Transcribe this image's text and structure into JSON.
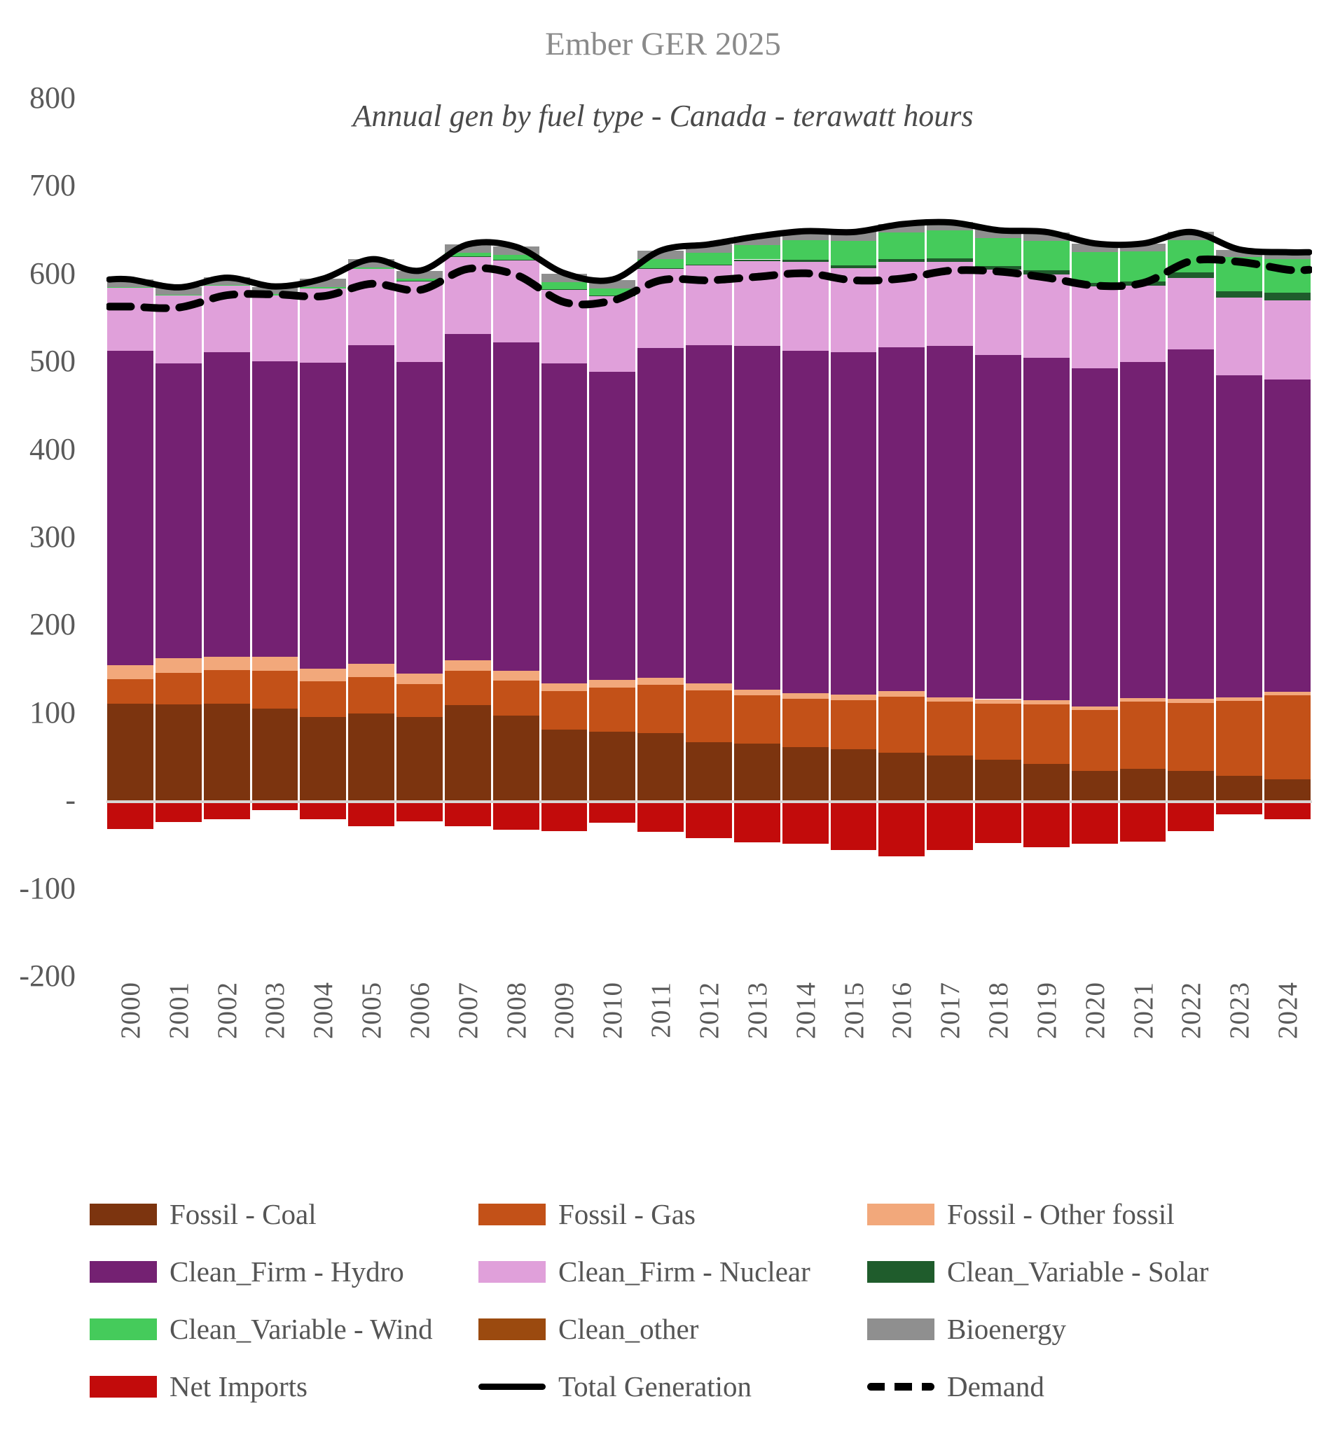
{
  "header": {
    "title": "Ember GER 2025",
    "subtitle": "Annual gen by fuel type - Canada - terawatt hours"
  },
  "y_axis": {
    "ticks": [
      {
        "label": "800",
        "value": 800
      },
      {
        "label": "700",
        "value": 700
      },
      {
        "label": "600",
        "value": 600
      },
      {
        "label": "500",
        "value": 500
      },
      {
        "label": "400",
        "value": 400
      },
      {
        "label": "300",
        "value": 300
      },
      {
        "label": "200",
        "value": 200
      },
      {
        "label": "100",
        "value": 100
      },
      {
        "label": "-",
        "value": 0
      },
      {
        "label": "-100",
        "value": -100
      },
      {
        "label": "-200",
        "value": -200
      }
    ]
  },
  "colors": {
    "coal": "#7C340F",
    "gas": "#C35118",
    "other_fossil": "#F2A87B",
    "hydro": "#742172",
    "nuclear": "#E0A0DA",
    "solar": "#1F5C2C",
    "wind": "#45CB5B",
    "clean_other": "#9B4A0F",
    "bioenergy": "#8F8F8F",
    "net_imports": "#C20B0B",
    "line": "#000000",
    "zero_axis": "#D8D5D3",
    "axis_text": "#5A5A5A",
    "title_text": "#8A8A8A",
    "subtitle_text": "#4A4A4A"
  },
  "chart_data": {
    "type": "bar",
    "subtype": "stacked-bar-with-lines",
    "title": "Ember GER 2025",
    "subtitle": "Annual gen by fuel type - Canada - terawatt hours",
    "region": "Canada",
    "unit": "terawatt hours",
    "ylim": [
      -200,
      800
    ],
    "grid": false,
    "legend_position": "bottom",
    "categories": [
      "2000",
      "2001",
      "2002",
      "2003",
      "2004",
      "2005",
      "2006",
      "2007",
      "2008",
      "2009",
      "2010",
      "2011",
      "2012",
      "2013",
      "2014",
      "2015",
      "2016",
      "2017",
      "2018",
      "2019",
      "2020",
      "2021",
      "2022",
      "2023",
      "2024"
    ],
    "series": [
      {
        "name": "Fossil - Coal",
        "color": "#7C340F",
        "values": [
          112,
          111,
          112,
          106,
          97,
          101,
          97,
          110,
          98,
          82,
          80,
          78,
          68,
          66,
          62,
          60,
          56,
          53,
          48,
          43,
          35,
          38,
          35,
          30,
          26
        ]
      },
      {
        "name": "Fossil - Gas",
        "color": "#C35118",
        "values": [
          28,
          36,
          38,
          43,
          40,
          41,
          37,
          39,
          40,
          44,
          50,
          55,
          59,
          55,
          55,
          56,
          64,
          61,
          64,
          68,
          70,
          76,
          78,
          85,
          95
        ]
      },
      {
        "name": "Fossil - Other fossil",
        "color": "#F2A87B",
        "values": [
          16,
          17,
          15,
          16,
          15,
          15,
          12,
          12,
          11,
          9,
          9,
          8,
          8,
          7,
          7,
          6,
          6,
          5,
          5,
          5,
          4,
          4,
          4,
          4,
          4
        ]
      },
      {
        "name": "Clean_Firm - Hydro",
        "color": "#742172",
        "values": [
          358,
          335,
          347,
          337,
          348,
          363,
          355,
          372,
          374,
          364,
          351,
          376,
          385,
          391,
          390,
          390,
          392,
          400,
          392,
          390,
          385,
          383,
          398,
          367,
          356
        ]
      },
      {
        "name": "Clean_Firm - Nuclear",
        "color": "#E0A0DA",
        "values": [
          72,
          78,
          76,
          75,
          85,
          87,
          92,
          88,
          94,
          85,
          86,
          90,
          91,
          97,
          101,
          96,
          97,
          96,
          97,
          95,
          93,
          87,
          82,
          88,
          90
        ]
      },
      {
        "name": "Clean_Variable - Solar",
        "color": "#1F5C2C",
        "values": [
          0,
          0,
          0,
          0,
          0,
          0,
          0.1,
          0.1,
          0.1,
          0.2,
          0.4,
          0.8,
          1.2,
          1.8,
          2.5,
          3,
          3.3,
          3.7,
          3.9,
          4.1,
          4.3,
          5,
          6,
          7.5,
          9
        ]
      },
      {
        "name": "Clean_Variable - Wind",
        "color": "#45CB5B",
        "values": [
          0.3,
          0.5,
          0.7,
          1,
          1.5,
          1.8,
          2.9,
          4,
          5.7,
          8,
          8.7,
          10.2,
          13,
          16,
          22,
          28,
          30,
          32,
          32,
          34,
          35,
          34,
          37,
          39,
          38
        ]
      },
      {
        "name": "Clean_other",
        "color": "#9B4A0F",
        "values": [
          0,
          0,
          0,
          0,
          0,
          0,
          0,
          0,
          0,
          0,
          0,
          0,
          0,
          0,
          0,
          0,
          0,
          0,
          0,
          0,
          0,
          0,
          0,
          0,
          0
        ]
      },
      {
        "name": "Bioenergy",
        "color": "#8F8F8F",
        "values": [
          8.5,
          8.5,
          8.5,
          8.5,
          9,
          9,
          9,
          9.5,
          9.5,
          9.5,
          9.5,
          9.5,
          9.5,
          10,
          10,
          10,
          9.5,
          9.5,
          9.5,
          9.5,
          9.5,
          9,
          9,
          8,
          7.5
        ]
      },
      {
        "name": "Net Imports",
        "color": "#C20B0B",
        "values": [
          -31,
          -23,
          -20,
          -9,
          -20,
          -28,
          -22,
          -28,
          -32,
          -33,
          -24,
          -34,
          -41,
          -46,
          -48,
          -55,
          -62,
          -55,
          -47,
          -52,
          -48,
          -45,
          -33,
          -14,
          -20
        ]
      }
    ],
    "lines": [
      {
        "name": "Total Generation",
        "style": "solid",
        "values": [
          595,
          586,
          597,
          587,
          596,
          618,
          605,
          635,
          632,
          602,
          595,
          628,
          635,
          644,
          650,
          649,
          658,
          660,
          651,
          649,
          636,
          636,
          649,
          629,
          626
        ]
      },
      {
        "name": "Demand",
        "style": "dashed",
        "values": [
          564,
          563,
          577,
          578,
          576,
          590,
          583,
          607,
          600,
          569,
          571,
          594,
          594,
          598,
          602,
          594,
          596,
          605,
          604,
          597,
          588,
          591,
          616,
          615,
          606
        ]
      }
    ]
  },
  "legend": {
    "items": [
      {
        "label": "Fossil - Coal",
        "kind": "box",
        "color": "#7C340F"
      },
      {
        "label": "Fossil - Gas",
        "kind": "box",
        "color": "#C35118"
      },
      {
        "label": "Fossil - Other fossil",
        "kind": "box",
        "color": "#F2A87B"
      },
      {
        "label": "Clean_Firm - Hydro",
        "kind": "box",
        "color": "#742172"
      },
      {
        "label": "Clean_Firm - Nuclear",
        "kind": "box",
        "color": "#E0A0DA"
      },
      {
        "label": "Clean_Variable - Solar",
        "kind": "box",
        "color": "#1F5C2C"
      },
      {
        "label": "Clean_Variable - Wind",
        "kind": "box",
        "color": "#45CB5B"
      },
      {
        "label": "Clean_other",
        "kind": "box",
        "color": "#9B4A0F"
      },
      {
        "label": "Bioenergy",
        "kind": "box",
        "color": "#8F8F8F"
      },
      {
        "label": "Net Imports",
        "kind": "box",
        "color": "#C20B0B"
      },
      {
        "label": "Total Generation",
        "kind": "line",
        "color": "#000000"
      },
      {
        "label": "Demand",
        "kind": "dash",
        "color": "#000000"
      }
    ]
  }
}
